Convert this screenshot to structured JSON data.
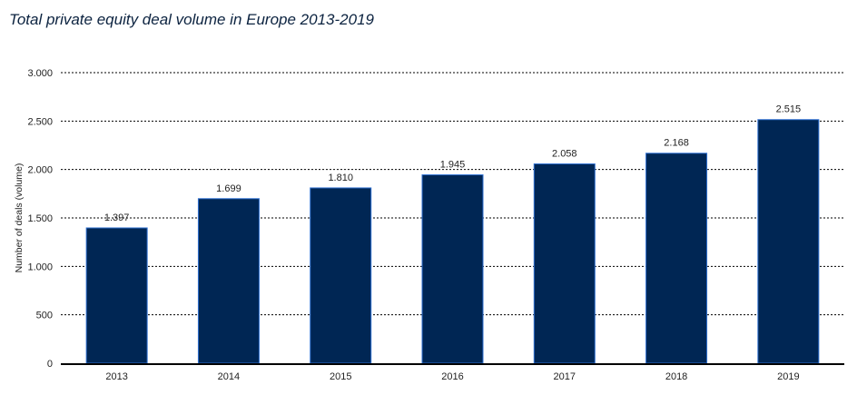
{
  "title": "Total private equity deal volume in Europe 2013-2019",
  "colors": {
    "bar_fill": "#002654",
    "bar_border": "#2e6fd0",
    "grid": "#000000"
  },
  "chart_data": {
    "type": "bar",
    "title": "Total private equity deal volume in Europe 2013-2019",
    "xlabel": "",
    "ylabel": "Number of deals (volume)",
    "categories": [
      "2013",
      "2014",
      "2015",
      "2016",
      "2017",
      "2018",
      "2019"
    ],
    "values": [
      1397,
      1699,
      1810,
      1945,
      2058,
      2168,
      2515
    ],
    "value_labels": [
      "1.397",
      "1.699",
      "1.810",
      "1.945",
      "2.058",
      "2.168",
      "2.515"
    ],
    "ylim": [
      0,
      3000
    ],
    "yticks": [
      0,
      500,
      1000,
      1500,
      2000,
      2500,
      3000
    ],
    "ytick_labels": [
      "0",
      "500",
      "1.000",
      "1.500",
      "2.000",
      "2.500",
      "3.000"
    ],
    "grid": true,
    "legend": "none"
  }
}
